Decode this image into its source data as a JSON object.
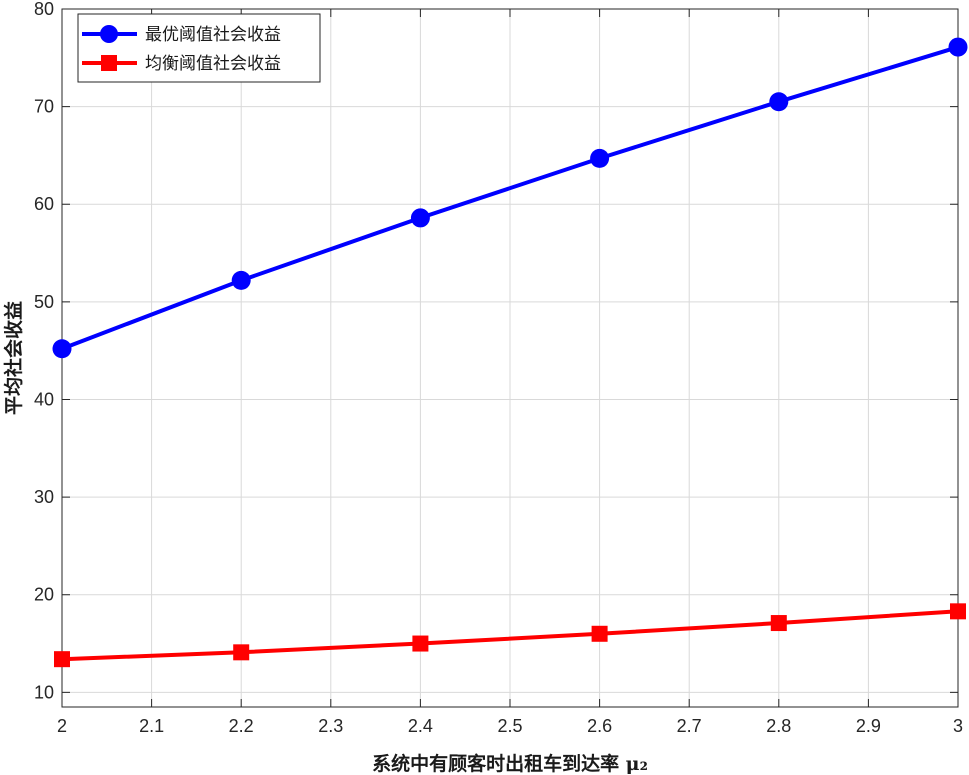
{
  "chart_data": {
    "type": "line",
    "x": [
      2.0,
      2.2,
      2.4,
      2.6,
      2.8,
      3.0
    ],
    "xlim": [
      2,
      3
    ],
    "ylim": [
      8.5,
      80
    ],
    "xticks": [
      "2",
      "2.1",
      "2.2",
      "2.3",
      "2.4",
      "2.5",
      "2.6",
      "2.7",
      "2.8",
      "2.9",
      "3"
    ],
    "yticks": [
      "10",
      "20",
      "30",
      "40",
      "50",
      "60",
      "70",
      "80"
    ],
    "xlabel": "系统中有顾客时出租车到达率 μ₂",
    "ylabel": "平均社会收益",
    "grid": true,
    "legend_position": "top-left",
    "series": [
      {
        "name": "最优阈值社会收益",
        "color": "#0000ff",
        "marker": "circle",
        "values": [
          45.2,
          52.2,
          58.6,
          64.7,
          70.5,
          76.1
        ]
      },
      {
        "name": "均衡阈值社会收益",
        "color": "#ff0000",
        "marker": "square",
        "values": [
          13.4,
          14.1,
          15.0,
          16.0,
          17.1,
          18.3
        ]
      }
    ]
  }
}
